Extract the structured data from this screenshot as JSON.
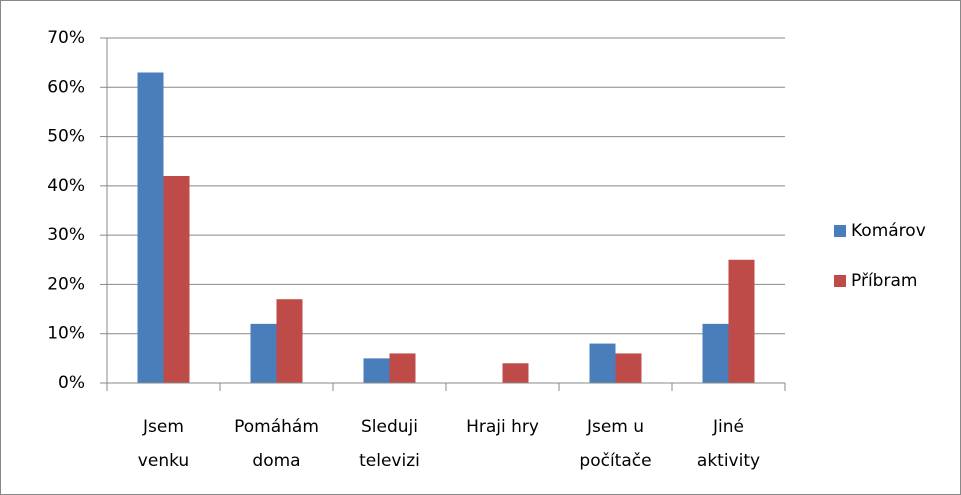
{
  "chart_data": {
    "type": "bar",
    "categories": [
      [
        "Jsem",
        "venku"
      ],
      [
        "Pomáhám",
        "doma"
      ],
      [
        "Sleduji",
        "televizi"
      ],
      [
        "Hraji hry"
      ],
      [
        "Jsem u",
        "počítače"
      ],
      [
        "Jiné",
        "aktivity"
      ]
    ],
    "series": [
      {
        "name": "Komárov",
        "color": "#4a7ebb",
        "values": [
          63,
          12,
          5,
          0,
          8,
          12
        ]
      },
      {
        "name": "Příbram",
        "color": "#be4b48",
        "values": [
          42,
          17,
          6,
          4,
          6,
          25
        ]
      }
    ],
    "ylim": [
      0,
      70
    ],
    "yticks": [
      {
        "value": 0,
        "label": "0%"
      },
      {
        "value": 10,
        "label": "10%"
      },
      {
        "value": 20,
        "label": "20%"
      },
      {
        "value": 30,
        "label": "30%"
      },
      {
        "value": 40,
        "label": "40%"
      },
      {
        "value": 50,
        "label": "50%"
      },
      {
        "value": 60,
        "label": "60%"
      },
      {
        "value": 70,
        "label": "70%"
      }
    ],
    "grid": true,
    "legend": "right"
  }
}
